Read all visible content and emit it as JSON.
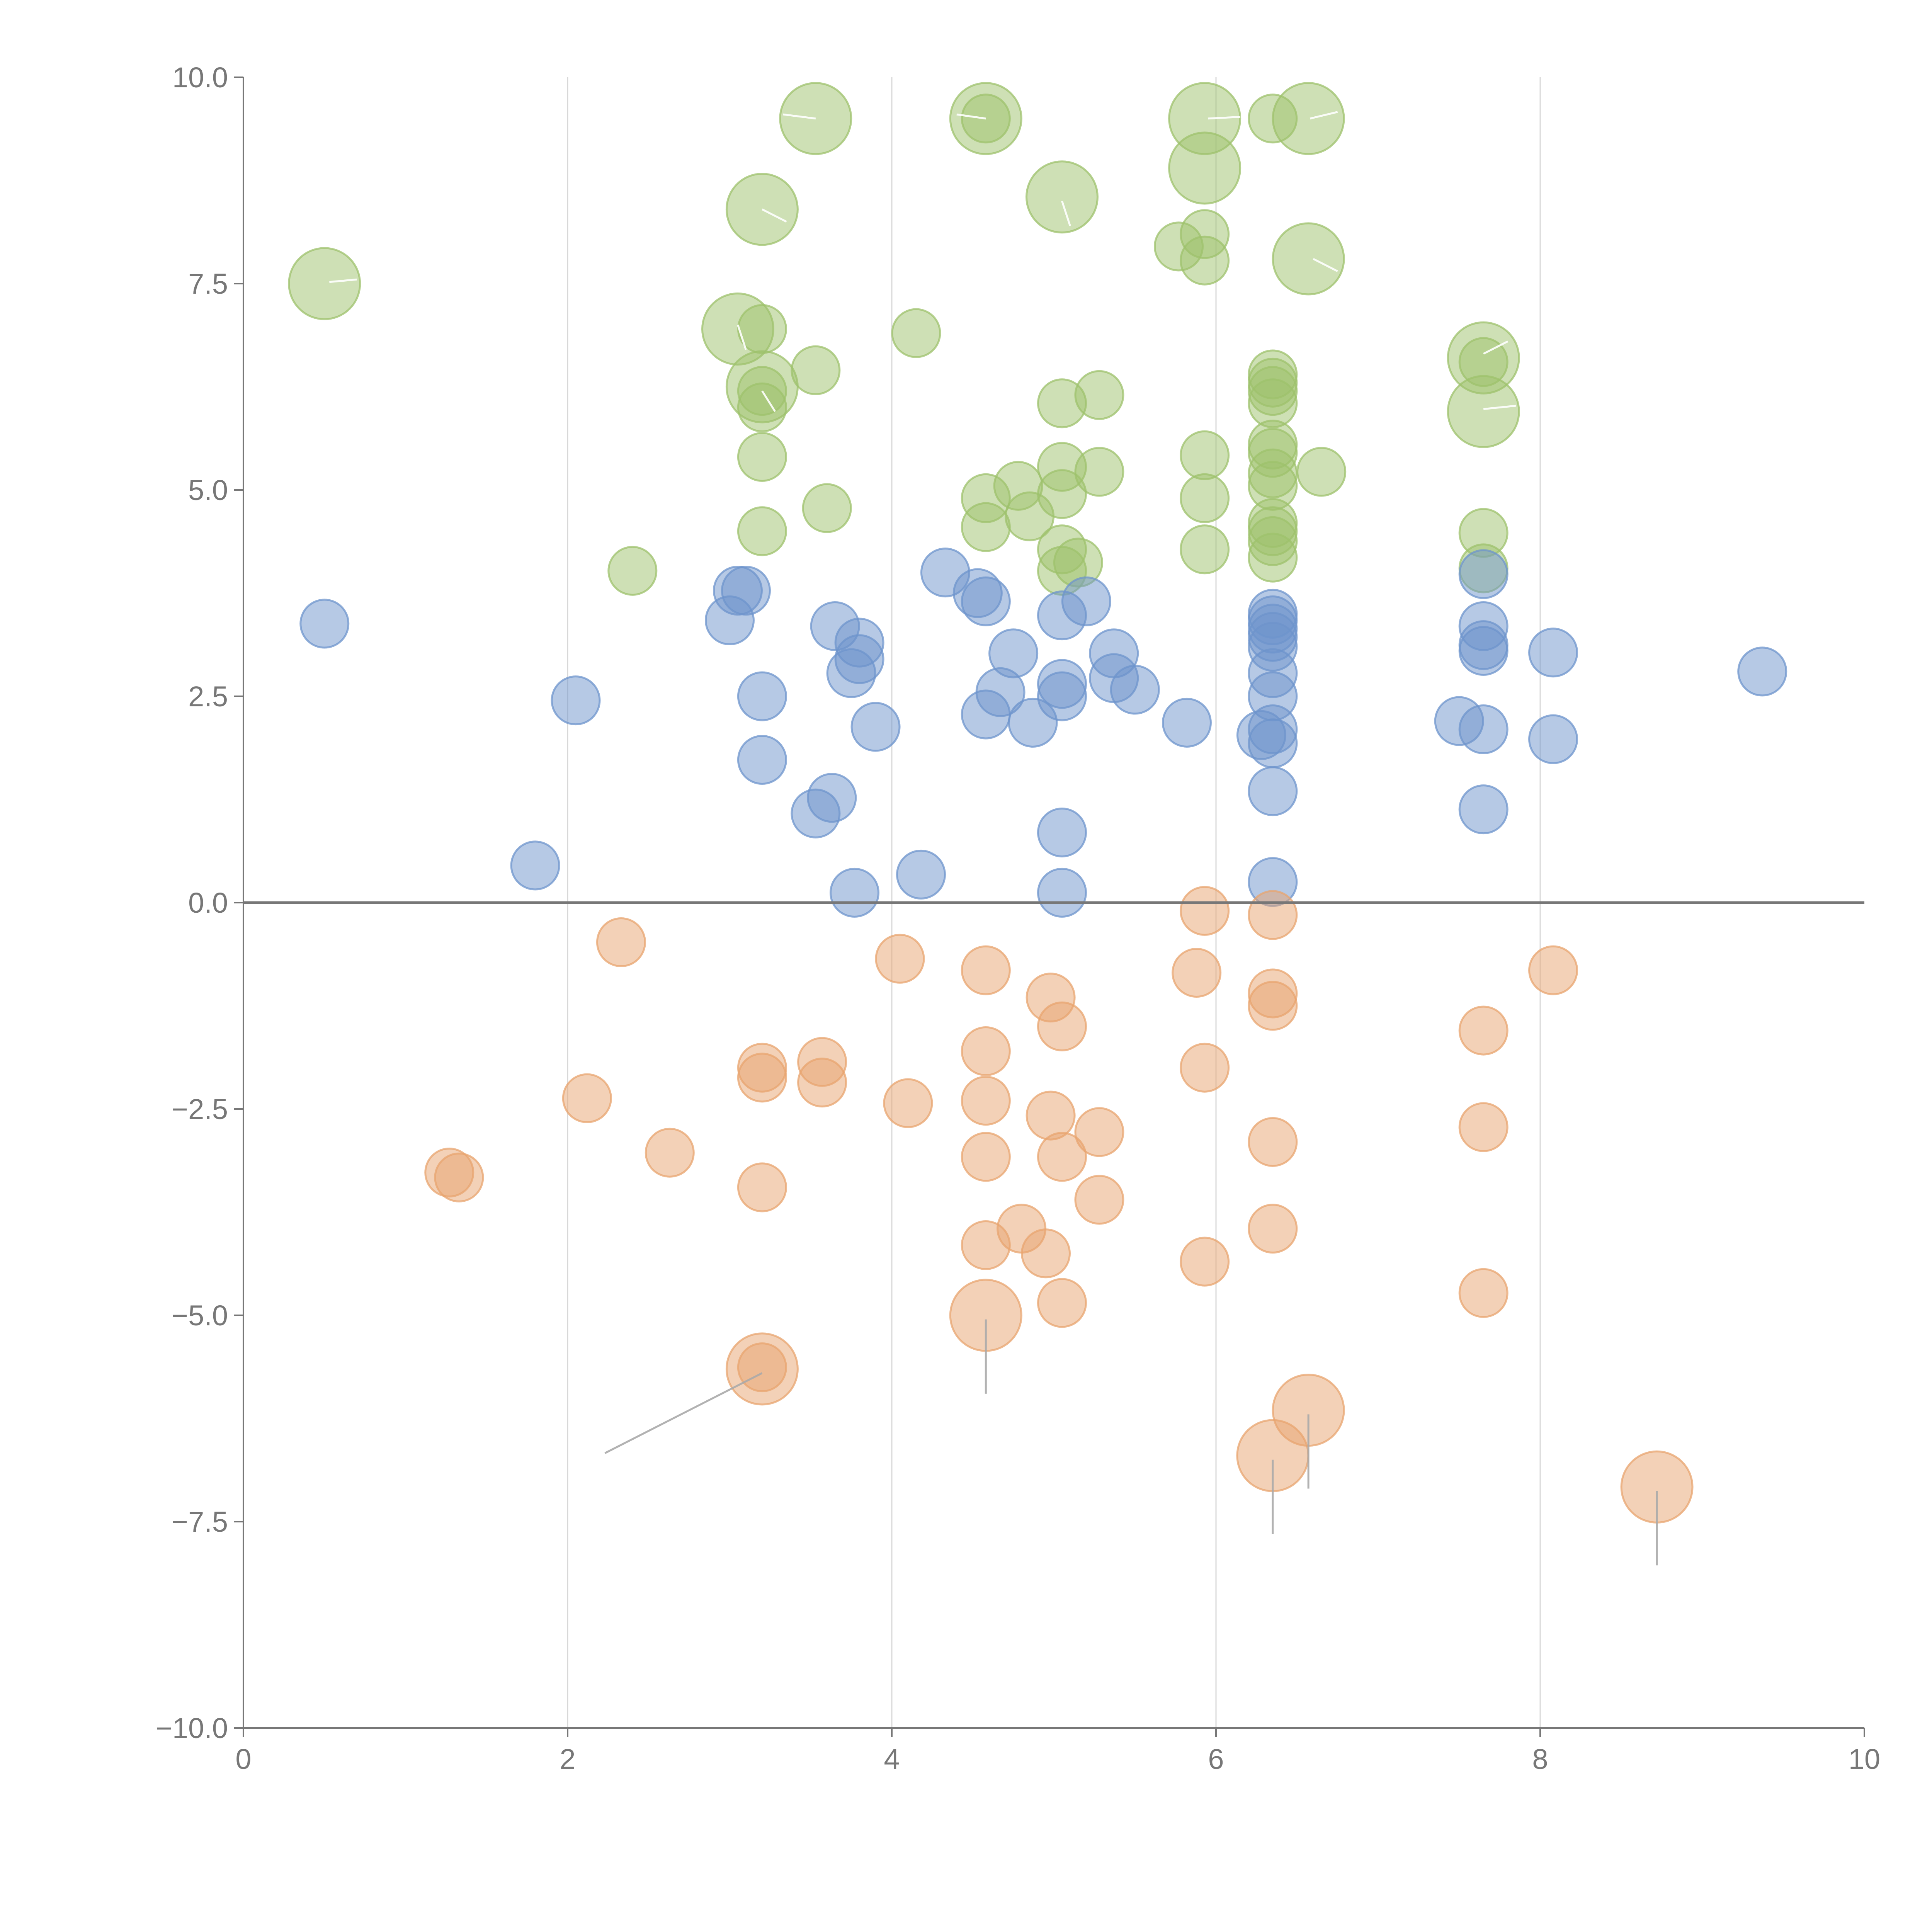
{
  "chart_data": {
    "type": "scatter",
    "title": "",
    "xlabel": "",
    "ylabel": "",
    "xlim": [
      0,
      10
    ],
    "ylim": [
      -10,
      10
    ],
    "x_ticks": [
      {
        "value": 0,
        "label": "0"
      },
      {
        "value": 2,
        "label": "2"
      },
      {
        "value": 4,
        "label": "4"
      },
      {
        "value": 6,
        "label": "6"
      },
      {
        "value": 8,
        "label": "8"
      },
      {
        "value": 10,
        "label": "10"
      }
    ],
    "y_ticks": [
      {
        "value": 10,
        "label": "10.0"
      },
      {
        "value": 7.5,
        "label": "7.5"
      },
      {
        "value": 5,
        "label": "5.0"
      },
      {
        "value": 2.5,
        "label": "2.5"
      },
      {
        "value": 0,
        "label": "0.0"
      },
      {
        "value": -2.5,
        "label": "−2.5"
      },
      {
        "value": -5,
        "label": "−5.0"
      },
      {
        "value": -7.5,
        "label": "−7.5"
      },
      {
        "value": -10,
        "label": "−10.0"
      }
    ],
    "grid_x_values": [
      2,
      4,
      6,
      8
    ],
    "reference_line_y": 0,
    "series": [
      {
        "name": "green",
        "color": "#9dc26c",
        "points": [
          [
            0.5,
            7.5,
            2
          ],
          [
            3.53,
            9.5,
            2
          ],
          [
            4.58,
            9.5,
            2
          ],
          [
            4.58,
            9.5,
            0
          ],
          [
            5.93,
            9.5,
            2
          ],
          [
            6.57,
            9.5,
            2
          ],
          [
            6.35,
            9.5,
            0
          ],
          [
            3.2,
            8.4,
            2
          ],
          [
            5.05,
            8.55,
            2
          ],
          [
            5.93,
            8.9,
            2
          ],
          [
            6.57,
            7.8,
            2
          ],
          [
            5.93,
            8.1,
            0
          ],
          [
            5.77,
            7.95,
            0
          ],
          [
            5.93,
            7.78,
            0
          ],
          [
            3.05,
            6.95,
            2
          ],
          [
            3.2,
            6.95,
            0
          ],
          [
            4.15,
            6.9,
            0
          ],
          [
            3.2,
            6.25,
            2
          ],
          [
            3.2,
            6.2,
            0
          ],
          [
            3.2,
            6.0,
            0
          ],
          [
            3.53,
            6.45,
            0
          ],
          [
            7.65,
            6.6,
            2
          ],
          [
            7.65,
            6.55,
            0
          ],
          [
            7.65,
            5.95,
            2
          ],
          [
            5.05,
            6.05,
            0
          ],
          [
            5.28,
            6.15,
            0
          ],
          [
            6.35,
            6.4,
            0
          ],
          [
            6.35,
            6.3,
            0
          ],
          [
            6.35,
            6.2,
            0
          ],
          [
            6.35,
            6.05,
            0
          ],
          [
            6.35,
            5.55,
            0
          ],
          [
            6.35,
            5.45,
            0
          ],
          [
            6.35,
            5.2,
            0
          ],
          [
            6.35,
            5.05,
            0
          ],
          [
            6.35,
            4.6,
            0
          ],
          [
            6.35,
            4.5,
            0
          ],
          [
            6.35,
            4.38,
            0
          ],
          [
            6.35,
            4.18,
            0
          ],
          [
            6.65,
            5.22,
            0
          ],
          [
            3.2,
            5.4,
            0
          ],
          [
            5.93,
            5.42,
            0
          ],
          [
            5.05,
            5.28,
            0
          ],
          [
            5.28,
            5.22,
            0
          ],
          [
            4.78,
            5.05,
            0
          ],
          [
            4.58,
            4.9,
            0
          ],
          [
            5.05,
            4.95,
            0
          ],
          [
            5.93,
            4.9,
            0
          ],
          [
            3.6,
            4.78,
            0
          ],
          [
            4.85,
            4.68,
            0
          ],
          [
            4.58,
            4.55,
            0
          ],
          [
            3.2,
            4.5,
            0
          ],
          [
            7.65,
            4.48,
            0
          ],
          [
            5.05,
            4.28,
            0
          ],
          [
            5.93,
            4.28,
            0
          ],
          [
            5.15,
            4.12,
            0
          ],
          [
            5.05,
            4.02,
            0
          ],
          [
            2.4,
            4.02,
            0
          ],
          [
            7.65,
            4.05,
            0
          ]
        ]
      },
      {
        "name": "blue",
        "color": "#6d94cc",
        "points": [
          [
            0.5,
            3.38,
            0
          ],
          [
            3.05,
            3.78,
            0
          ],
          [
            3.1,
            3.78,
            0
          ],
          [
            3.0,
            3.42,
            0
          ],
          [
            4.33,
            4.0,
            0
          ],
          [
            4.53,
            3.75,
            0
          ],
          [
            4.58,
            3.65,
            0
          ],
          [
            5.2,
            3.65,
            0
          ],
          [
            3.65,
            3.35,
            0
          ],
          [
            3.8,
            3.15,
            0
          ],
          [
            3.8,
            2.95,
            0
          ],
          [
            3.75,
            2.78,
            0
          ],
          [
            4.75,
            3.02,
            0
          ],
          [
            5.05,
            3.48,
            0
          ],
          [
            5.37,
            3.02,
            0
          ],
          [
            5.37,
            2.72,
            0
          ],
          [
            5.5,
            2.58,
            0
          ],
          [
            5.05,
            2.65,
            0
          ],
          [
            5.05,
            2.5,
            0
          ],
          [
            4.67,
            2.55,
            0
          ],
          [
            4.58,
            2.28,
            0
          ],
          [
            4.87,
            2.18,
            0
          ],
          [
            3.9,
            2.13,
            0
          ],
          [
            3.2,
            2.5,
            0
          ],
          [
            2.05,
            2.45,
            0
          ],
          [
            3.2,
            1.73,
            0
          ],
          [
            3.63,
            1.27,
            0
          ],
          [
            3.53,
            1.08,
            0
          ],
          [
            5.05,
            0.85,
            0
          ],
          [
            4.18,
            0.34,
            0
          ],
          [
            3.77,
            0.12,
            0
          ],
          [
            5.05,
            0.12,
            0
          ],
          [
            1.8,
            0.45,
            0
          ],
          [
            5.82,
            2.18,
            0
          ],
          [
            6.28,
            2.03,
            0
          ],
          [
            6.35,
            1.93,
            0
          ],
          [
            6.35,
            2.1,
            0
          ],
          [
            6.35,
            2.5,
            0
          ],
          [
            6.35,
            2.78,
            0
          ],
          [
            6.35,
            3.1,
            0
          ],
          [
            6.35,
            3.22,
            0
          ],
          [
            6.35,
            3.32,
            0
          ],
          [
            6.35,
            3.42,
            0
          ],
          [
            6.35,
            3.5,
            0
          ],
          [
            6.35,
            1.35,
            0
          ],
          [
            6.35,
            0.25,
            0
          ],
          [
            7.5,
            2.2,
            0
          ],
          [
            7.65,
            2.1,
            0
          ],
          [
            7.65,
            3.05,
            0
          ],
          [
            7.65,
            3.12,
            0
          ],
          [
            7.65,
            3.35,
            0
          ],
          [
            7.65,
            3.98,
            0
          ],
          [
            7.65,
            1.13,
            0
          ],
          [
            8.08,
            3.03,
            0
          ],
          [
            8.08,
            1.98,
            0
          ],
          [
            9.37,
            2.8,
            0
          ]
        ]
      },
      {
        "name": "orange",
        "color": "#e8a46f",
        "points": [
          [
            2.33,
            -0.48,
            0
          ],
          [
            4.05,
            -0.68,
            0
          ],
          [
            5.93,
            -0.1,
            0
          ],
          [
            6.35,
            -0.15,
            0
          ],
          [
            4.58,
            -0.82,
            0
          ],
          [
            5.88,
            -0.85,
            0
          ],
          [
            8.08,
            -0.82,
            0
          ],
          [
            4.98,
            -1.15,
            0
          ],
          [
            6.35,
            -1.1,
            0
          ],
          [
            6.35,
            -1.25,
            0
          ],
          [
            5.05,
            -1.5,
            0
          ],
          [
            7.65,
            -1.55,
            0
          ],
          [
            4.58,
            -1.8,
            0
          ],
          [
            3.2,
            -2.0,
            0
          ],
          [
            3.2,
            -2.12,
            0
          ],
          [
            3.57,
            -1.93,
            0
          ],
          [
            3.57,
            -2.18,
            0
          ],
          [
            5.93,
            -2.0,
            0
          ],
          [
            2.12,
            -2.37,
            0
          ],
          [
            4.1,
            -2.43,
            0
          ],
          [
            4.58,
            -2.4,
            0
          ],
          [
            4.98,
            -2.58,
            0
          ],
          [
            5.28,
            -2.78,
            0
          ],
          [
            7.65,
            -2.72,
            0
          ],
          [
            6.35,
            -2.9,
            0
          ],
          [
            2.63,
            -3.03,
            0
          ],
          [
            4.58,
            -3.08,
            0
          ],
          [
            5.05,
            -3.08,
            0
          ],
          [
            1.27,
            -3.27,
            0
          ],
          [
            1.33,
            -3.33,
            0
          ],
          [
            3.2,
            -3.45,
            0
          ],
          [
            5.28,
            -3.6,
            0
          ],
          [
            6.35,
            -3.95,
            0
          ],
          [
            4.8,
            -3.95,
            0
          ],
          [
            4.58,
            -4.15,
            0
          ],
          [
            4.95,
            -4.25,
            0
          ],
          [
            5.93,
            -4.35,
            0
          ],
          [
            5.05,
            -4.85,
            0
          ],
          [
            7.65,
            -4.73,
            0
          ],
          [
            4.58,
            -5.0,
            2
          ],
          [
            3.2,
            -5.65,
            2
          ],
          [
            3.2,
            -5.63,
            0
          ],
          [
            6.57,
            -6.15,
            2
          ],
          [
            6.35,
            -6.7,
            2
          ],
          [
            8.72,
            -7.08,
            2
          ]
        ]
      }
    ],
    "annotation_leaders": [
      {
        "from": [
          3.2,
          -5.7
        ],
        "to": [
          2.23,
          -6.67
        ],
        "color": "#aaaaaa"
      },
      {
        "from": [
          4.58,
          -5.05
        ],
        "to": [
          4.58,
          -5.95
        ],
        "color": "#aaaaaa"
      },
      {
        "from": [
          6.57,
          -6.2
        ],
        "to": [
          6.57,
          -7.1
        ],
        "color": "#aaaaaa"
      },
      {
        "from": [
          6.35,
          -6.75
        ],
        "to": [
          6.35,
          -7.65
        ],
        "color": "#aaaaaa"
      },
      {
        "from": [
          8.72,
          -7.13
        ],
        "to": [
          8.72,
          -8.03
        ],
        "color": "#aaaaaa"
      },
      {
        "from": [
          0.53,
          7.52
        ],
        "to": [
          0.7,
          7.55
        ],
        "color": "#ffffff"
      },
      {
        "from": [
          3.53,
          9.5
        ],
        "to": [
          3.33,
          9.55
        ],
        "color": "#ffffff"
      },
      {
        "from": [
          4.58,
          9.5
        ],
        "to": [
          4.4,
          9.55
        ],
        "color": "#ffffff"
      },
      {
        "from": [
          5.95,
          9.5
        ],
        "to": [
          6.15,
          9.52
        ],
        "color": "#ffffff"
      },
      {
        "from": [
          6.58,
          9.5
        ],
        "to": [
          6.75,
          9.58
        ],
        "color": "#ffffff"
      },
      {
        "from": [
          3.2,
          8.4
        ],
        "to": [
          3.35,
          8.25
        ],
        "color": "#ffffff"
      },
      {
        "from": [
          5.05,
          8.5
        ],
        "to": [
          5.1,
          8.2
        ],
        "color": "#ffffff"
      },
      {
        "from": [
          6.6,
          7.8
        ],
        "to": [
          6.75,
          7.65
        ],
        "color": "#ffffff"
      },
      {
        "from": [
          3.05,
          7.0
        ],
        "to": [
          3.1,
          6.7
        ],
        "color": "#ffffff"
      },
      {
        "from": [
          3.2,
          6.2
        ],
        "to": [
          3.28,
          5.95
        ],
        "color": "#ffffff"
      },
      {
        "from": [
          7.65,
          6.65
        ],
        "to": [
          7.8,
          6.8
        ],
        "color": "#ffffff"
      },
      {
        "from": [
          7.65,
          5.98
        ],
        "to": [
          7.85,
          6.02
        ],
        "color": "#ffffff"
      }
    ]
  }
}
